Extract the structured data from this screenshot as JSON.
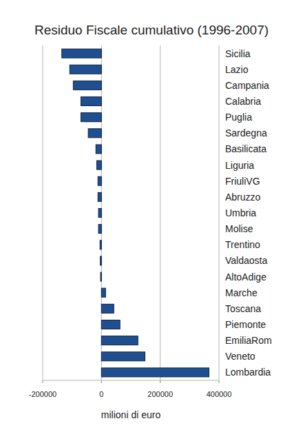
{
  "chart_data": {
    "type": "bar",
    "orientation": "horizontal",
    "title": "Residuo Fiscale cumulativo (1996-2007)",
    "x_label": "milioni di euro",
    "categories": [
      "Sicilia",
      "Lazio",
      "Campania",
      "Calabria",
      "Puglia",
      "Sardegna",
      "Basilicata",
      "Liguria",
      "FriuliVG",
      "Abruzzo",
      "Umbria",
      "Molise",
      "Trentino",
      "Valdaosta",
      "AltoAdige",
      "Marche",
      "Toscana",
      "Piemonte",
      "EmiliaRom",
      "Veneto",
      "Lombardia"
    ],
    "values": [
      -135000,
      -108000,
      -96000,
      -70000,
      -70000,
      -45000,
      -19000,
      -16000,
      -12000,
      -12000,
      -10000,
      -10000,
      -5000,
      -4000,
      -3000,
      14000,
      42000,
      63000,
      124000,
      148000,
      366000
    ],
    "color": "#1f4f8f",
    "xlim": [
      -200000,
      400000
    ],
    "xticks": [
      -200000,
      0,
      200000,
      400000
    ],
    "grid": true
  }
}
